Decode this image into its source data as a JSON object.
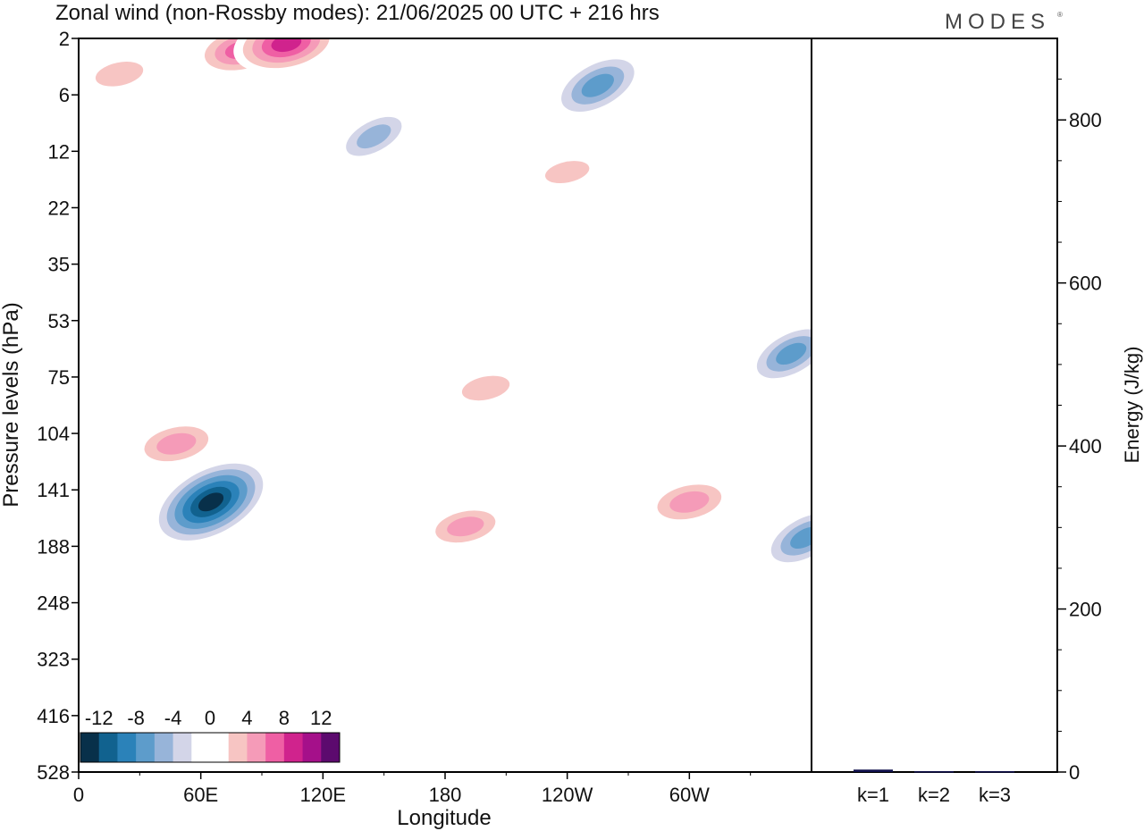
{
  "title": "Zonal wind (non-Rossby modes):  21/06/2025  00 UTC  + 216 hrs",
  "logo": "MODES",
  "chart_data": [
    {
      "type": "heatmap",
      "title": "Zonal wind (non-Rossby modes):  21/06/2025  00 UTC  + 216 hrs",
      "xlabel": "Longitude",
      "ylabel": "Pressure levels (hPa)",
      "x_ticks": [
        "0",
        "60E",
        "120E",
        "180",
        "120W",
        "60W"
      ],
      "x_tick_values": [
        0,
        60,
        120,
        180,
        240,
        300
      ],
      "xlim": [
        0,
        360
      ],
      "y_ticks": [
        "2",
        "6",
        "12",
        "22",
        "35",
        "53",
        "75",
        "104",
        "141",
        "188",
        "248",
        "323",
        "416",
        "528"
      ],
      "colorbar": {
        "tick_labels": [
          "-12",
          "-8",
          "-4",
          "0",
          "4",
          "8",
          "12"
        ],
        "levels": [
          -14,
          -12,
          -10,
          -8,
          -6,
          -4,
          -2,
          0,
          2,
          4,
          6,
          8,
          10,
          12,
          14
        ],
        "colors": [
          "#08304a",
          "#11628f",
          "#2b82b9",
          "#5d9ccb",
          "#97b4d9",
          "#d3d5e8",
          "#ffffff",
          "#ffffff",
          "#f7c5c3",
          "#f59bb8",
          "#ef5fa4",
          "#d0238d",
          "#a5108a",
          "#5c0a6e"
        ]
      },
      "features": [
        {
          "lon": 65,
          "p": 150,
          "value": -14
        },
        {
          "lon": 80,
          "p": 2.5,
          "value": 8
        },
        {
          "lon": 48,
          "p": 110,
          "value": 7
        },
        {
          "lon": 190,
          "p": 170,
          "value": 6
        },
        {
          "lon": 300,
          "p": 150,
          "value": 7
        },
        {
          "lon": 102,
          "p": 2.2,
          "value": 10
        },
        {
          "lon": 255,
          "p": 5,
          "value": -9
        },
        {
          "lon": 350,
          "p": 65,
          "value": -8
        },
        {
          "lon": 357,
          "p": 180,
          "value": -8
        },
        {
          "lon": 200,
          "p": 80,
          "value": 5
        },
        {
          "lon": 145,
          "p": 10,
          "value": -6
        },
        {
          "lon": 20,
          "p": 4,
          "value": 5
        },
        {
          "lon": 240,
          "p": 15,
          "value": 4
        }
      ]
    },
    {
      "type": "bar",
      "categories": [
        "k=1",
        "k=2",
        "k=3"
      ],
      "values": [
        3,
        1,
        1
      ],
      "ylabel": "Energy (J/kg)",
      "ylim": [
        0,
        900
      ],
      "y_ticks": [
        0,
        200,
        400,
        600,
        800
      ],
      "bar_color": "#11114d"
    }
  ]
}
